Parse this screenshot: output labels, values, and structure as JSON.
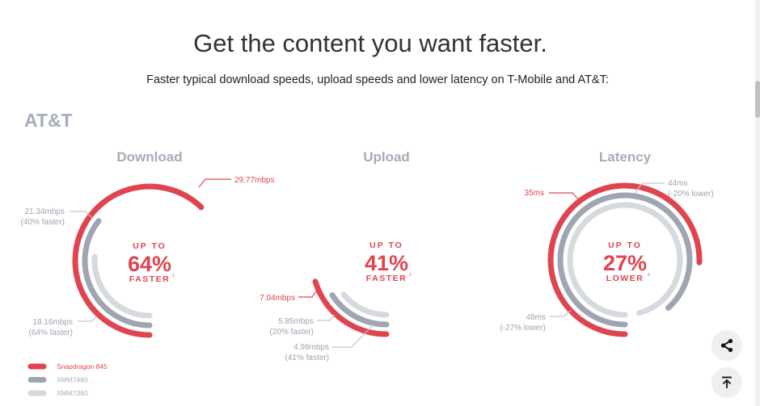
{
  "header": {
    "title": "Get the content you want faster.",
    "subtitle": "Faster typical download speeds, upload speeds and lower latency on T-Mobile and AT&T:"
  },
  "carrier": "AT&T",
  "colors": {
    "snapdragon": "#e0454f",
    "xmm7480": "#9fa6b2",
    "xmm7360": "#d6d9de",
    "title_gray": "#a6adb8"
  },
  "chart_data": [
    {
      "type": "radial-bar",
      "title": "Download",
      "center": {
        "top": "UP TO",
        "value": "64%",
        "bottom": "FASTER",
        "footnote": "1"
      },
      "series": [
        {
          "name": "Snapdragon 845",
          "value": 29.77,
          "label": "29.77mbps",
          "note": ""
        },
        {
          "name": "XMM7480",
          "value": 21.34,
          "label": "21.34mbps",
          "note": "(40% faster)"
        },
        {
          "name": "XMM7360",
          "value": 18.16,
          "label": "18.16mbps",
          "note": "(64% faster)"
        }
      ]
    },
    {
      "type": "radial-bar",
      "title": "Upload",
      "center": {
        "top": "UP TO",
        "value": "41%",
        "bottom": "FASTER",
        "footnote": "2"
      },
      "series": [
        {
          "name": "Snapdragon 845",
          "value": 7.04,
          "label": "7.04mbps",
          "note": ""
        },
        {
          "name": "XMM7480",
          "value": 5.85,
          "label": "5.85mbps",
          "note": "(20% faster)"
        },
        {
          "name": "XMM7360",
          "value": 4.98,
          "label": "4.98mbps",
          "note": "(41% faster)"
        }
      ]
    },
    {
      "type": "radial-bar",
      "title": "Latency",
      "center": {
        "top": "UP TO",
        "value": "27%",
        "bottom": "LOWER",
        "footnote": "3"
      },
      "series": [
        {
          "name": "Snapdragon 845",
          "value": 35,
          "label": "35ms",
          "note": ""
        },
        {
          "name": "XMM7480",
          "value": 44,
          "label": "44ms",
          "note": "(-20% lower)"
        },
        {
          "name": "XMM7360",
          "value": 48,
          "label": "48ms",
          "note": "(-27% lower)"
        }
      ]
    }
  ],
  "legend": [
    "Snapdragon 845",
    "XMM7480",
    "XMM7360"
  ],
  "buttons": {
    "share_icon": "share-icon",
    "top_icon": "back-to-top-icon"
  }
}
